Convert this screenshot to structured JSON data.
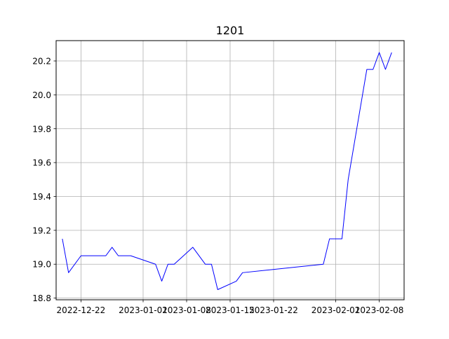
{
  "chart_data": {
    "type": "line",
    "title": "1201",
    "xlabel": "",
    "ylabel": "",
    "grid": true,
    "color": "#0000ff",
    "xlim": [
      "2022-12-18",
      "2023-02-12"
    ],
    "ylim": [
      18.79,
      20.32
    ],
    "xticks": [
      "2022-12-22",
      "2023-01-01",
      "2023-01-08",
      "2023-01-15",
      "2023-01-22",
      "2023-02-01",
      "2023-02-08"
    ],
    "yticks": [
      18.8,
      19.0,
      19.2,
      19.4,
      19.6,
      19.8,
      20.0,
      20.2
    ],
    "ytick_labels": [
      "18.8",
      "19.0",
      "19.2",
      "19.4",
      "19.6",
      "19.8",
      "20.0",
      "20.2"
    ],
    "series": [
      {
        "x": [
          "2022-12-19",
          "2022-12-20",
          "2022-12-22",
          "2022-12-26",
          "2022-12-27",
          "2022-12-28",
          "2022-12-30",
          "2023-01-03",
          "2023-01-04",
          "2023-01-05",
          "2023-01-06",
          "2023-01-09",
          "2023-01-11",
          "2023-01-12",
          "2023-01-13",
          "2023-01-16",
          "2023-01-17",
          "2023-01-30",
          "2023-01-31",
          "2023-02-02",
          "2023-02-03",
          "2023-02-06",
          "2023-02-07",
          "2023-02-08",
          "2023-02-09",
          "2023-02-10"
        ],
        "y": [
          19.15,
          18.95,
          19.05,
          19.05,
          19.1,
          19.05,
          19.05,
          19.0,
          18.9,
          19.0,
          19.0,
          19.1,
          19.0,
          19.0,
          18.85,
          18.9,
          18.95,
          19.0,
          19.15,
          19.15,
          19.5,
          20.15,
          20.15,
          20.25,
          20.15,
          20.25
        ]
      }
    ]
  }
}
